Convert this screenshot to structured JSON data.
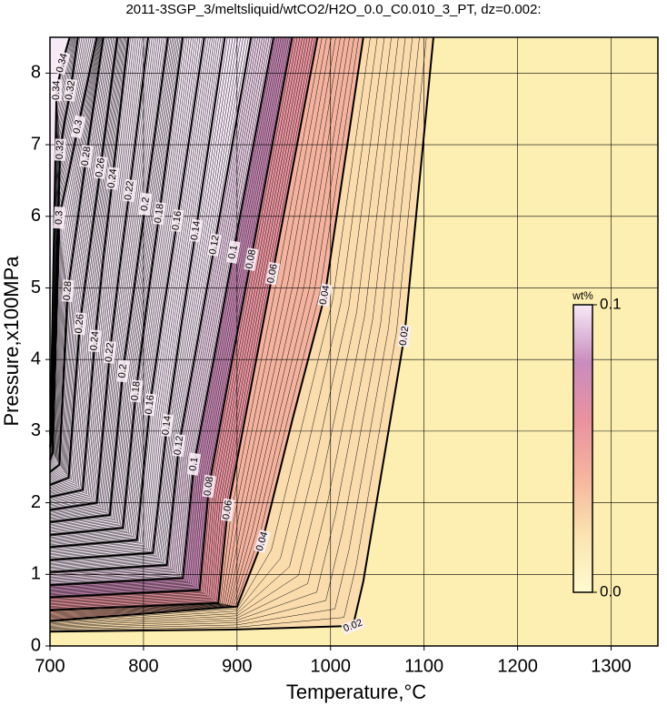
{
  "chart_data": {
    "type": "contour",
    "title": "2011-3SGP_3/meltsliquid/wtCO2/H2O_0.0_C0.010_3_PT, dz=0.002:",
    "x_label": "Temperature,°C",
    "y_label": "Pressure,x100MPa",
    "xlim": [
      700,
      1350
    ],
    "ylim": [
      0,
      8.5
    ],
    "xticks": [
      700,
      800,
      900,
      1000,
      1100,
      1200,
      1300
    ],
    "yticks": [
      0,
      1,
      2,
      3,
      4,
      5,
      6,
      7,
      8
    ],
    "grid": true,
    "background": "#fdefb2",
    "colormap": [
      "#fdfbd0",
      "#fbe3b0",
      "#f5b59e",
      "#e8929f",
      "#c98cbf",
      "#f7eaf7"
    ],
    "colorbar": {
      "label": "wt%",
      "clim": [
        0,
        0.1
      ],
      "ticks": [
        {
          "value": 0,
          "label": "0.0"
        },
        {
          "value": 0.1,
          "label": "0.1"
        }
      ]
    },
    "contours": [
      {
        "level": 0.02,
        "x": [
          700,
          900,
          1024,
          1035,
          1079,
          1110
        ],
        "y": [
          0.2,
          0.23,
          0.28,
          0.9,
          4.33,
          8.5
        ]
      },
      {
        "level": 0.04,
        "x": [
          700,
          900,
          927,
          960,
          994,
          1035
        ],
        "y": [
          0.35,
          0.55,
          1.46,
          3.2,
          4.9,
          8.5
        ]
      },
      {
        "level": 0.06,
        "x": [
          700,
          880,
          890,
          914,
          938,
          986
        ],
        "y": [
          0.5,
          0.6,
          1.9,
          3.55,
          5.2,
          8.5
        ]
      },
      {
        "level": 0.08,
        "x": [
          700,
          860,
          870,
          892,
          915,
          959
        ],
        "y": [
          0.68,
          0.78,
          2.23,
          3.8,
          5.4,
          8.5
        ]
      },
      {
        "level": 0.1,
        "x": [
          700,
          842,
          854,
          875,
          896,
          939
        ],
        "y": [
          0.85,
          0.95,
          2.54,
          4.0,
          5.5,
          8.5
        ]
      },
      {
        "level": 0.12,
        "x": [
          700,
          825,
          838,
          857,
          876,
          915
        ],
        "y": [
          1.03,
          1.13,
          2.8,
          4.2,
          5.6,
          8.5
        ]
      },
      {
        "level": 0.14,
        "x": [
          700,
          810,
          825,
          840,
          856,
          887
        ],
        "y": [
          1.2,
          1.3,
          3.08,
          4.45,
          5.8,
          8.5
        ]
      },
      {
        "level": 0.16,
        "x": [
          700,
          793,
          807,
          821,
          836,
          865
        ],
        "y": [
          1.38,
          1.48,
          3.37,
          4.65,
          5.94,
          8.5
        ]
      },
      {
        "level": 0.18,
        "x": [
          700,
          778,
          792,
          804,
          817,
          842
        ],
        "y": [
          1.55,
          1.65,
          3.56,
          4.8,
          6.04,
          8.5
        ]
      },
      {
        "level": 0.2,
        "x": [
          700,
          764,
          778,
          790,
          802,
          826
        ],
        "y": [
          1.73,
          1.83,
          3.84,
          5.0,
          6.17,
          8.5
        ]
      },
      {
        "level": 0.22,
        "x": [
          700,
          750,
          764,
          774,
          785,
          805
        ],
        "y": [
          1.9,
          2.0,
          4.1,
          5.23,
          6.36,
          8.5
        ]
      },
      {
        "level": 0.24,
        "x": [
          700,
          735,
          748,
          757,
          767,
          784
        ],
        "y": [
          2.08,
          2.18,
          4.26,
          5.4,
          6.53,
          8.5
        ]
      },
      {
        "level": 0.26,
        "x": [
          700,
          720,
          732,
          743,
          754,
          772
        ],
        "y": [
          2.25,
          2.35,
          4.5,
          5.6,
          6.68,
          8.5
        ]
      },
      {
        "level": 0.28,
        "x": [
          700,
          710,
          719,
          729,
          739,
          757
        ],
        "y": [
          2.43,
          2.53,
          4.96,
          5.9,
          6.84,
          8.5
        ]
      },
      {
        "level": 0.3,
        "x": [
          700,
          703,
          710,
          720,
          730,
          750
        ],
        "y": [
          2.6,
          2.7,
          5.98,
          6.6,
          7.25,
          8.5
        ]
      },
      {
        "level": 0.32,
        "x": [
          700,
          701,
          711,
          716,
          722,
          730
        ],
        "y": [
          2.78,
          2.88,
          6.93,
          7.35,
          7.76,
          8.5
        ]
      },
      {
        "level": 0.34,
        "x": [
          700,
          700.5,
          707,
          710,
          713,
          721
        ],
        "y": [
          2.95,
          3.05,
          7.76,
          7.95,
          8.14,
          8.5
        ]
      }
    ]
  }
}
